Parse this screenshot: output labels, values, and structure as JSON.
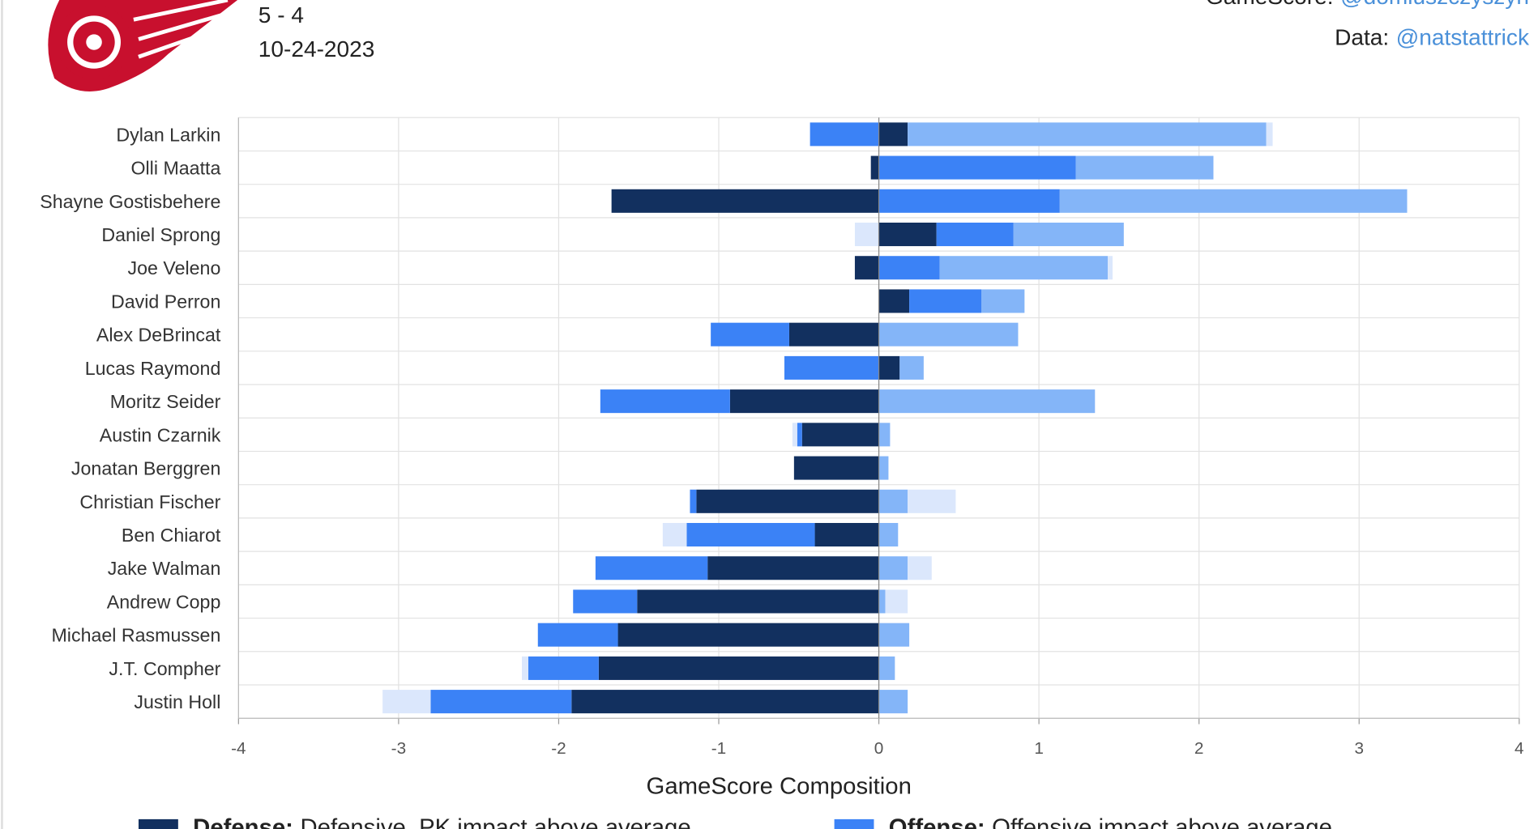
{
  "header": {
    "score": "5 - 4",
    "date": "10-24-2023",
    "gamescore_label": "GameScore:",
    "gamescore_handle": "@domluszczyszyn",
    "data_label": "Data:",
    "data_handle": "@natstattrick"
  },
  "chart_data": {
    "type": "stacked-bar-horizontal",
    "x_label": "GameScore Composition",
    "categories": [
      "Dylan Larkin",
      "Olli Maatta",
      "Shayne Gostisbehere",
      "Daniel Sprong",
      "Joe Veleno",
      "David Perron",
      "Alex DeBrincat",
      "Lucas Raymond",
      "Moritz Seider",
      "Austin Czarnik",
      "Jonatan Berggren",
      "Christian Fischer",
      "Ben Chiarot",
      "Jake Walman",
      "Andrew Copp",
      "Michael Rasmussen",
      "J.T. Compher",
      "Justin Holl"
    ],
    "series": [
      {
        "name": "Defense:",
        "description": "Defensive, PK impact above average",
        "color": "#12305f",
        "values": [
          0.18,
          -0.05,
          -1.67,
          0.36,
          -0.15,
          0.19,
          -0.56,
          0.13,
          -0.93,
          -0.48,
          -0.53,
          -1.14,
          -0.4,
          -1.07,
          -1.51,
          -1.63,
          -1.75,
          -1.92
        ]
      },
      {
        "name": "Offense:",
        "description": "Offensive impact above average",
        "color": "#3b82f6",
        "values": [
          -0.43,
          1.23,
          1.13,
          0.48,
          0.38,
          0.45,
          -0.49,
          -0.59,
          -0.81,
          -0.03,
          0,
          -0.04,
          -0.8,
          -0.7,
          -0.4,
          -0.5,
          -0.44,
          -0.88
        ]
      },
      {
        "color": "#84b5f8",
        "values": [
          2.24,
          0.86,
          2.17,
          0.69,
          1.05,
          0.27,
          0.87,
          0.15,
          1.35,
          0.07,
          0.06,
          0.18,
          0.12,
          0.18,
          0.04,
          0.19,
          0.1,
          0.18
        ]
      },
      {
        "color": "#dbe7fc",
        "values": [
          0.04,
          0,
          0,
          -0.15,
          0.03,
          0,
          0,
          0,
          0,
          -0.03,
          0,
          0.3,
          -0.15,
          0.15,
          0.14,
          0,
          -0.04,
          -0.3
        ]
      }
    ],
    "xlim": [
      -4,
      4
    ],
    "xticks": [
      -4,
      -3,
      -2,
      -1,
      0,
      1,
      2,
      3,
      4
    ],
    "grid": true
  }
}
